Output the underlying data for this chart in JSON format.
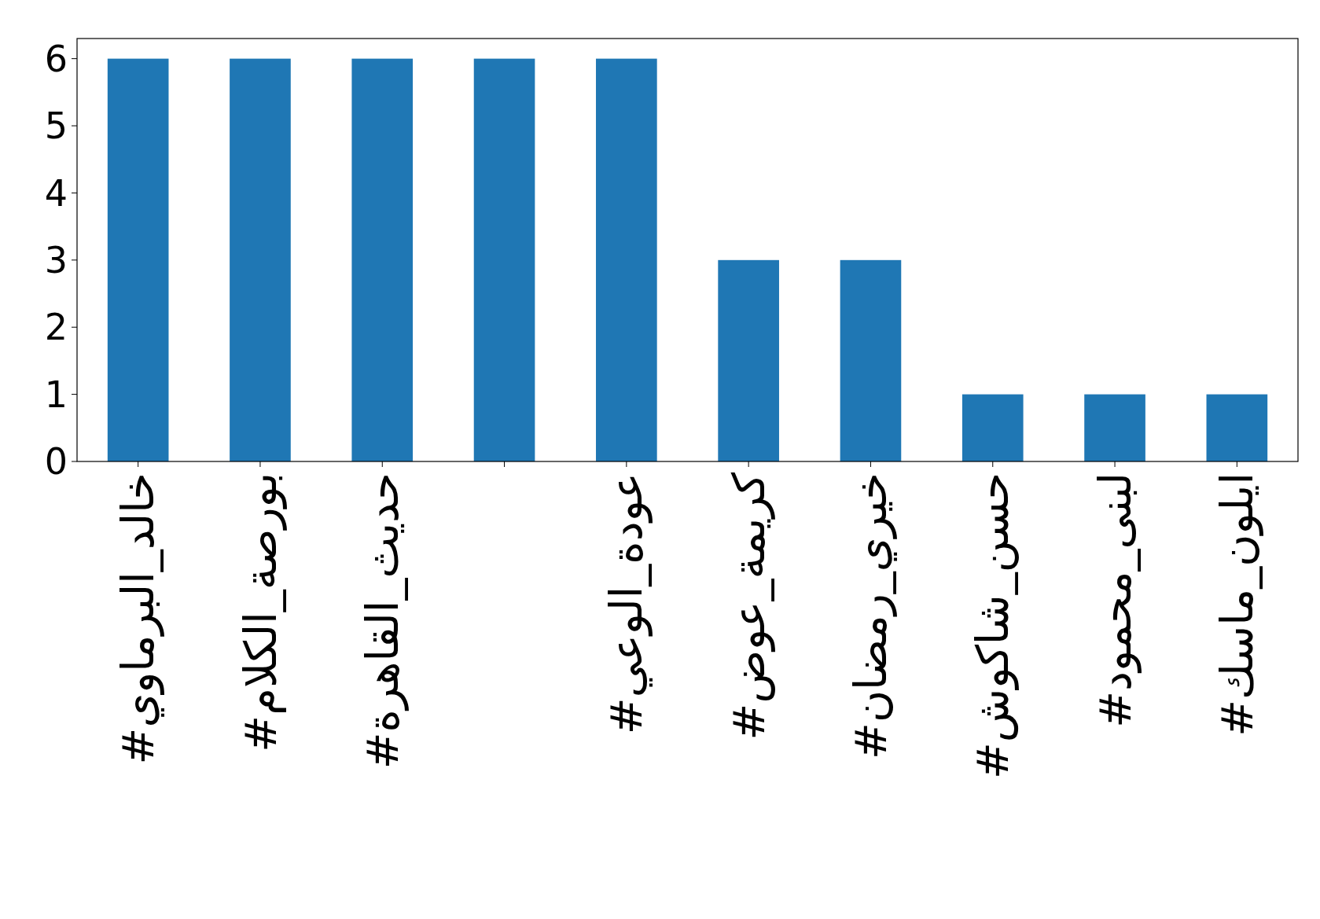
{
  "chart_data": {
    "type": "bar",
    "categories": [
      "#خالد_البرماوي",
      "#بورصة_الكلام",
      "#حديث_القاهرة",
      null,
      "#عودة_الوعي",
      "#كريمة_عوض",
      "#خيري_رمضان",
      "#حسن_شاكوش",
      "#لبنى_محمود",
      "#ايلون_ماسك"
    ],
    "values": [
      6,
      6,
      6,
      6,
      6,
      3,
      3,
      1,
      1,
      1
    ],
    "color": "#1f77b4",
    "ylim": [
      0,
      6.3
    ],
    "yticks": [
      0,
      1,
      2,
      3,
      4,
      5,
      6
    ],
    "grid": false
  }
}
